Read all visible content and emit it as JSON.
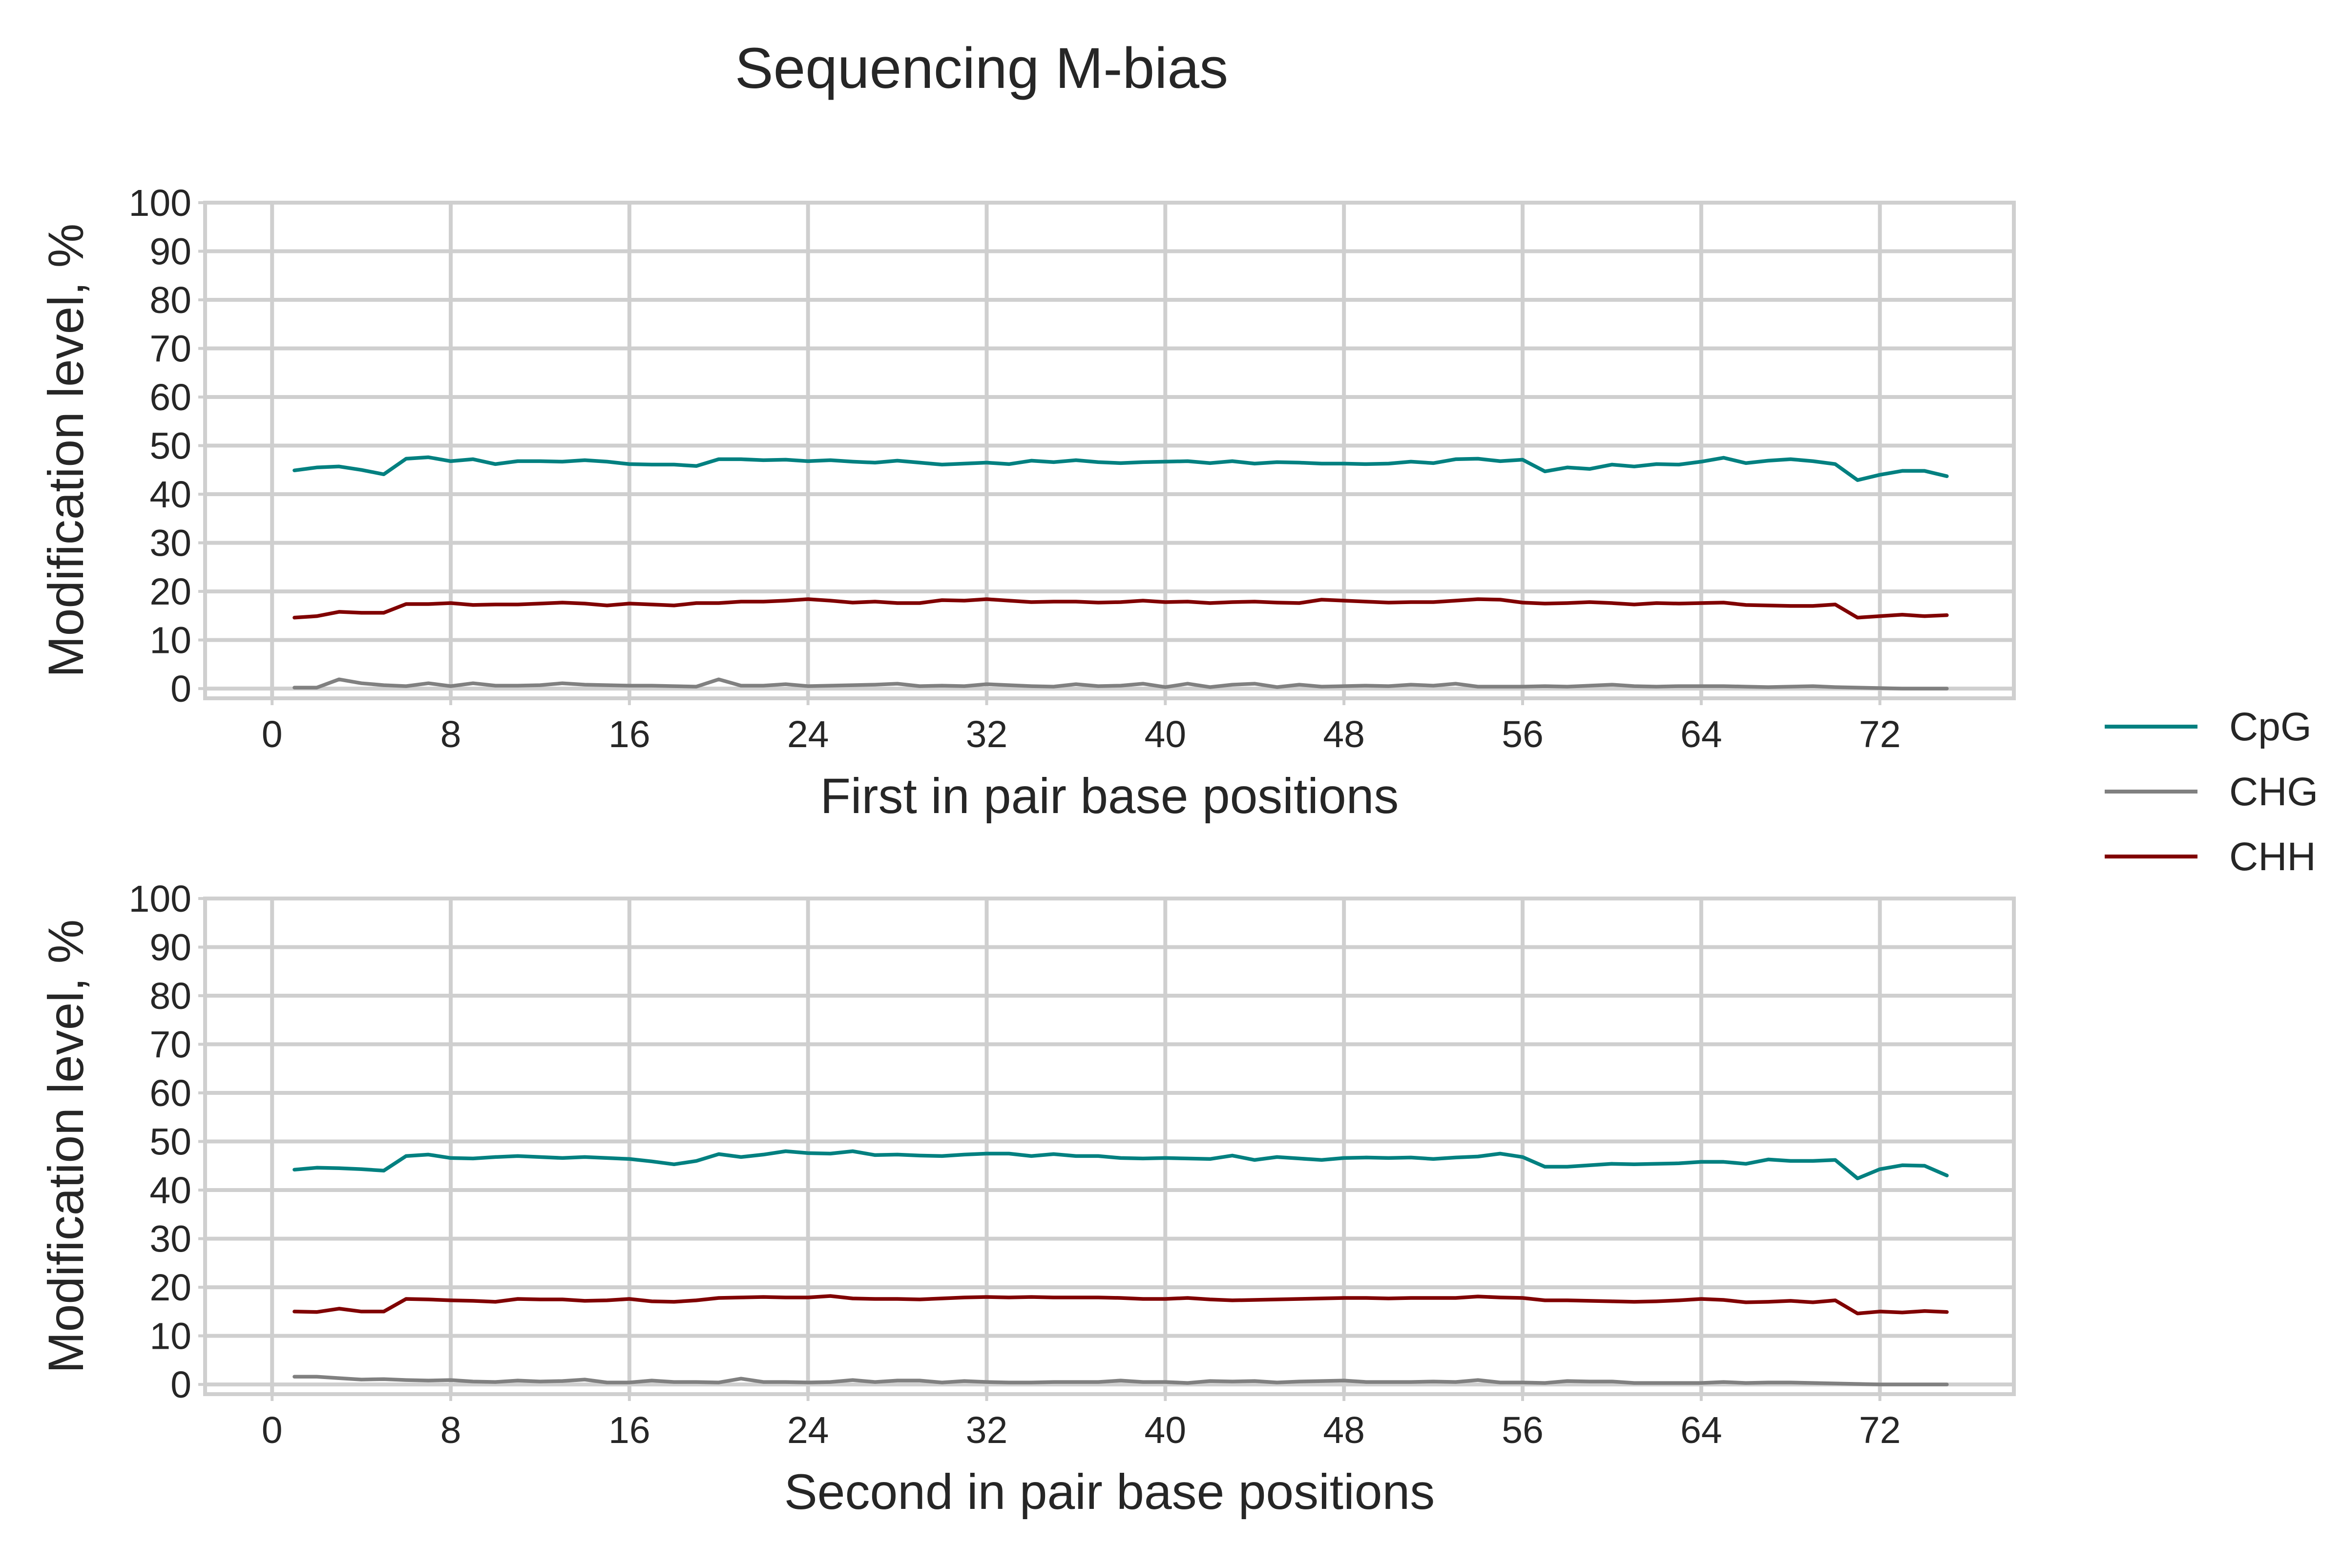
{
  "title": "Sequencing M-bias",
  "colors": {
    "CpG": "#008080",
    "CHG": "#808080",
    "CHH": "#800000",
    "grid": "#cfcfcf",
    "text": "#262626"
  },
  "legend": {
    "placement": "right, outside plots",
    "entries": [
      {
        "name": "CpG",
        "color": "#008080"
      },
      {
        "name": "CHG",
        "color": "#808080"
      },
      {
        "name": "CHH",
        "color": "#800000"
      }
    ]
  },
  "chart_data": [
    {
      "type": "line",
      "xlabel": "First in pair base positions",
      "ylabel": "Modification level, %",
      "xlim": [
        -3,
        78
      ],
      "ylim": [
        -2,
        100
      ],
      "xticks": [
        0,
        8,
        16,
        24,
        32,
        40,
        48,
        56,
        64,
        72
      ],
      "yticks": [
        0,
        10,
        20,
        30,
        40,
        50,
        60,
        70,
        80,
        90,
        100
      ],
      "grid": true,
      "x_start": 1,
      "series": [
        {
          "name": "CpG",
          "color": "#008080",
          "values": [
            44.9,
            45.5,
            45.7,
            45.0,
            44.1,
            47.3,
            47.6,
            46.8,
            47.2,
            46.2,
            46.8,
            46.8,
            46.7,
            47.0,
            46.7,
            46.2,
            46.1,
            46.1,
            45.8,
            47.2,
            47.2,
            47.0,
            47.1,
            46.8,
            47.0,
            46.7,
            46.5,
            46.9,
            46.5,
            46.1,
            46.3,
            46.5,
            46.2,
            46.9,
            46.6,
            47.0,
            46.6,
            46.4,
            46.6,
            46.7,
            46.8,
            46.4,
            46.8,
            46.3,
            46.6,
            46.5,
            46.3,
            46.3,
            46.2,
            46.3,
            46.7,
            46.4,
            47.2,
            47.3,
            46.8,
            47.1,
            44.7,
            45.5,
            45.2,
            46.1,
            45.7,
            46.2,
            46.1,
            46.7,
            47.5,
            46.4,
            46.9,
            47.2,
            46.8,
            46.2,
            42.9,
            44.0,
            44.8,
            44.8,
            43.7
          ]
        },
        {
          "name": "CHG",
          "color": "#808080",
          "values": [
            0.2,
            0.2,
            1.9,
            1.1,
            0.7,
            0.5,
            1.1,
            0.5,
            1.1,
            0.6,
            0.6,
            0.7,
            1.1,
            0.8,
            0.7,
            0.6,
            0.6,
            0.5,
            0.4,
            1.9,
            0.6,
            0.6,
            0.9,
            0.5,
            0.6,
            0.7,
            0.8,
            1.0,
            0.5,
            0.6,
            0.5,
            0.9,
            0.7,
            0.5,
            0.4,
            0.9,
            0.5,
            0.6,
            1.0,
            0.3,
            1.0,
            0.3,
            0.8,
            1.0,
            0.3,
            0.8,
            0.4,
            0.5,
            0.6,
            0.5,
            0.8,
            0.6,
            1.0,
            0.4,
            0.4,
            0.4,
            0.5,
            0.4,
            0.6,
            0.8,
            0.5,
            0.4,
            0.5,
            0.5,
            0.5,
            0.4,
            0.3,
            0.4,
            0.5,
            0.3,
            0.2,
            0.1,
            0.0,
            0.0,
            0.0
          ]
        },
        {
          "name": "CHH",
          "color": "#800000",
          "values": [
            14.6,
            14.9,
            15.8,
            15.6,
            15.6,
            17.4,
            17.4,
            17.6,
            17.2,
            17.3,
            17.3,
            17.5,
            17.7,
            17.5,
            17.1,
            17.5,
            17.3,
            17.1,
            17.6,
            17.6,
            17.9,
            17.9,
            18.1,
            18.4,
            18.1,
            17.7,
            17.9,
            17.6,
            17.6,
            18.2,
            18.1,
            18.4,
            18.1,
            17.8,
            17.9,
            17.9,
            17.7,
            17.8,
            18.1,
            17.8,
            17.9,
            17.6,
            17.8,
            17.9,
            17.7,
            17.6,
            18.3,
            18.1,
            17.9,
            17.7,
            17.8,
            17.8,
            18.1,
            18.4,
            18.3,
            17.7,
            17.5,
            17.6,
            17.8,
            17.6,
            17.3,
            17.6,
            17.5,
            17.6,
            17.7,
            17.2,
            17.1,
            17.0,
            17.0,
            17.3,
            14.6,
            14.9,
            15.2,
            14.9,
            15.1
          ]
        }
      ]
    },
    {
      "type": "line",
      "xlabel": "Second in pair base positions",
      "ylabel": "Modification level, %",
      "xlim": [
        -3,
        78
      ],
      "ylim": [
        -2,
        100
      ],
      "xticks": [
        0,
        8,
        16,
        24,
        32,
        40,
        48,
        56,
        64,
        72
      ],
      "yticks": [
        0,
        10,
        20,
        30,
        40,
        50,
        60,
        70,
        80,
        90,
        100
      ],
      "grid": true,
      "x_start": 1,
      "series": [
        {
          "name": "CpG",
          "color": "#008080",
          "values": [
            44.2,
            44.6,
            44.5,
            44.3,
            44.0,
            47.0,
            47.3,
            46.6,
            46.5,
            46.8,
            47.0,
            46.8,
            46.6,
            46.8,
            46.6,
            46.4,
            45.9,
            45.3,
            46.0,
            47.4,
            46.8,
            47.3,
            48.0,
            47.6,
            47.5,
            48.0,
            47.2,
            47.3,
            47.1,
            47.0,
            47.3,
            47.5,
            47.5,
            47.0,
            47.4,
            47.0,
            47.0,
            46.6,
            46.5,
            46.6,
            46.5,
            46.4,
            47.1,
            46.2,
            46.8,
            46.5,
            46.2,
            46.6,
            46.7,
            46.6,
            46.7,
            46.4,
            46.7,
            46.9,
            47.5,
            46.8,
            44.8,
            44.8,
            45.1,
            45.4,
            45.3,
            45.4,
            45.5,
            45.8,
            45.8,
            45.4,
            46.3,
            46.0,
            46.0,
            46.2,
            42.4,
            44.3,
            45.1,
            45.0,
            43.0
          ]
        },
        {
          "name": "CHG",
          "color": "#808080",
          "values": [
            1.6,
            1.6,
            1.3,
            1.0,
            1.1,
            0.9,
            0.8,
            0.9,
            0.6,
            0.5,
            0.8,
            0.6,
            0.7,
            1.0,
            0.4,
            0.4,
            0.8,
            0.5,
            0.5,
            0.4,
            1.2,
            0.5,
            0.5,
            0.4,
            0.5,
            0.9,
            0.5,
            0.8,
            0.8,
            0.4,
            0.7,
            0.5,
            0.4,
            0.4,
            0.5,
            0.5,
            0.5,
            0.8,
            0.5,
            0.5,
            0.3,
            0.7,
            0.6,
            0.7,
            0.4,
            0.6,
            0.7,
            0.8,
            0.5,
            0.5,
            0.5,
            0.6,
            0.5,
            0.9,
            0.4,
            0.4,
            0.3,
            0.7,
            0.6,
            0.6,
            0.3,
            0.3,
            0.3,
            0.3,
            0.5,
            0.3,
            0.4,
            0.4,
            0.3,
            0.2,
            0.1,
            0.0,
            0.0,
            0.0,
            0.0
          ]
        },
        {
          "name": "CHH",
          "color": "#800000",
          "values": [
            15.0,
            14.9,
            15.6,
            15.0,
            15.0,
            17.6,
            17.5,
            17.3,
            17.2,
            17.0,
            17.6,
            17.5,
            17.5,
            17.2,
            17.3,
            17.6,
            17.1,
            17.0,
            17.3,
            17.8,
            17.9,
            18.0,
            17.9,
            17.9,
            18.2,
            17.7,
            17.6,
            17.6,
            17.5,
            17.7,
            17.9,
            18.0,
            17.9,
            18.0,
            17.9,
            17.9,
            17.9,
            17.8,
            17.6,
            17.6,
            17.8,
            17.5,
            17.3,
            17.4,
            17.5,
            17.6,
            17.7,
            17.8,
            17.8,
            17.7,
            17.8,
            17.8,
            17.8,
            18.1,
            17.9,
            17.8,
            17.3,
            17.3,
            17.2,
            17.1,
            17.0,
            17.1,
            17.3,
            17.6,
            17.4,
            16.9,
            17.0,
            17.2,
            16.9,
            17.3,
            14.6,
            15.0,
            14.8,
            15.1,
            14.9
          ]
        }
      ]
    }
  ]
}
